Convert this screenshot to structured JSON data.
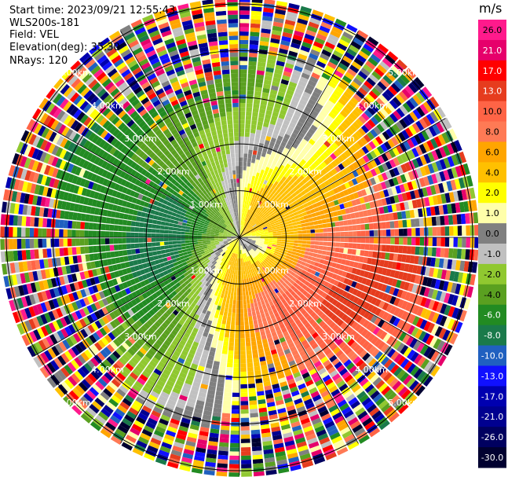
{
  "header": {
    "start_time": "Start time: 2023/09/21 12:55:43",
    "site": "WLS200s-181",
    "field": "Field: VEL",
    "elevation": "Elevation(deg): 35.30",
    "nrays": "NRays: 120"
  },
  "chart_data": {
    "type": "heatmap",
    "projection": "polar-ppi",
    "field": "VEL",
    "units": "m/s",
    "n_rays": 120,
    "elevation_deg": 35.3,
    "range_rings_km": [
      1.0,
      2.0,
      3.0,
      4.0,
      5.0
    ],
    "ring_labels": [
      "1.00km",
      "2.00km",
      "3.00km",
      "4.00km",
      "5.00km"
    ],
    "max_range_km": 5.1,
    "colorbar": {
      "title": "m/s",
      "ticks": [
        "26.0",
        "21.0",
        "17.0",
        "13.0",
        "10.0",
        "8.0",
        "6.0",
        "4.0",
        "2.0",
        "1.0",
        "0.0",
        "-1.0",
        "-2.0",
        "-4.0",
        "-6.0",
        "-8.0",
        "-10.0",
        "-13.0",
        "-17.0",
        "-21.0",
        "-26.0",
        "-30.0"
      ],
      "colors": [
        "#ff1a8c",
        "#e6006b",
        "#ff0000",
        "#e63c1e",
        "#ff6446",
        "#ff7a55",
        "#ffa500",
        "#ffc000",
        "#ffff00",
        "#ffffaa",
        "#808080",
        "#c0c0c0",
        "#90c830",
        "#5aa020",
        "#228b22",
        "#1a7a4a",
        "#2060c0",
        "#1010ff",
        "#0000b0",
        "#000090",
        "#000060",
        "#000030"
      ]
    },
    "wind_pattern": {
      "description_values": "approaching (negative) to the west/southwest, receding (positive) to the east",
      "peak_positive_mps": 10.0,
      "peak_negative_mps": -10.0
    }
  }
}
